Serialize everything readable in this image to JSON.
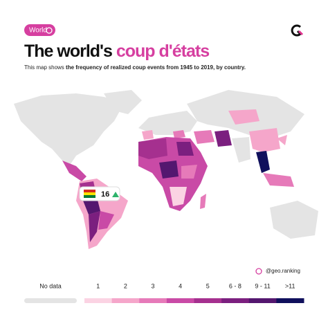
{
  "header": {
    "badge": "World",
    "title_plain": "The world's",
    "title_accent": "coup d'états",
    "subtitle_plain": "This map shows ",
    "subtitle_bold": "the frequency of realized coup events from 1945 to 2019, by country."
  },
  "callout": {
    "value": 16
  },
  "credit": "@geo.ranking",
  "legend": {
    "no_data": {
      "label": "No data",
      "color": "#e4e4e4"
    },
    "items": [
      {
        "label": "1",
        "color": "#fbd3e3"
      },
      {
        "label": "2",
        "color": "#f5a6ca"
      },
      {
        "label": "3",
        "color": "#e67ab9"
      },
      {
        "label": "4",
        "color": "#c94aa6"
      },
      {
        "label": "5",
        "color": "#a5308f"
      },
      {
        "label": "6 - 8",
        "color": "#7b1f7f"
      },
      {
        "label": "9 - 11",
        "color": "#54176f"
      },
      {
        "label": ">11",
        "color": "#10105c"
      }
    ]
  }
}
